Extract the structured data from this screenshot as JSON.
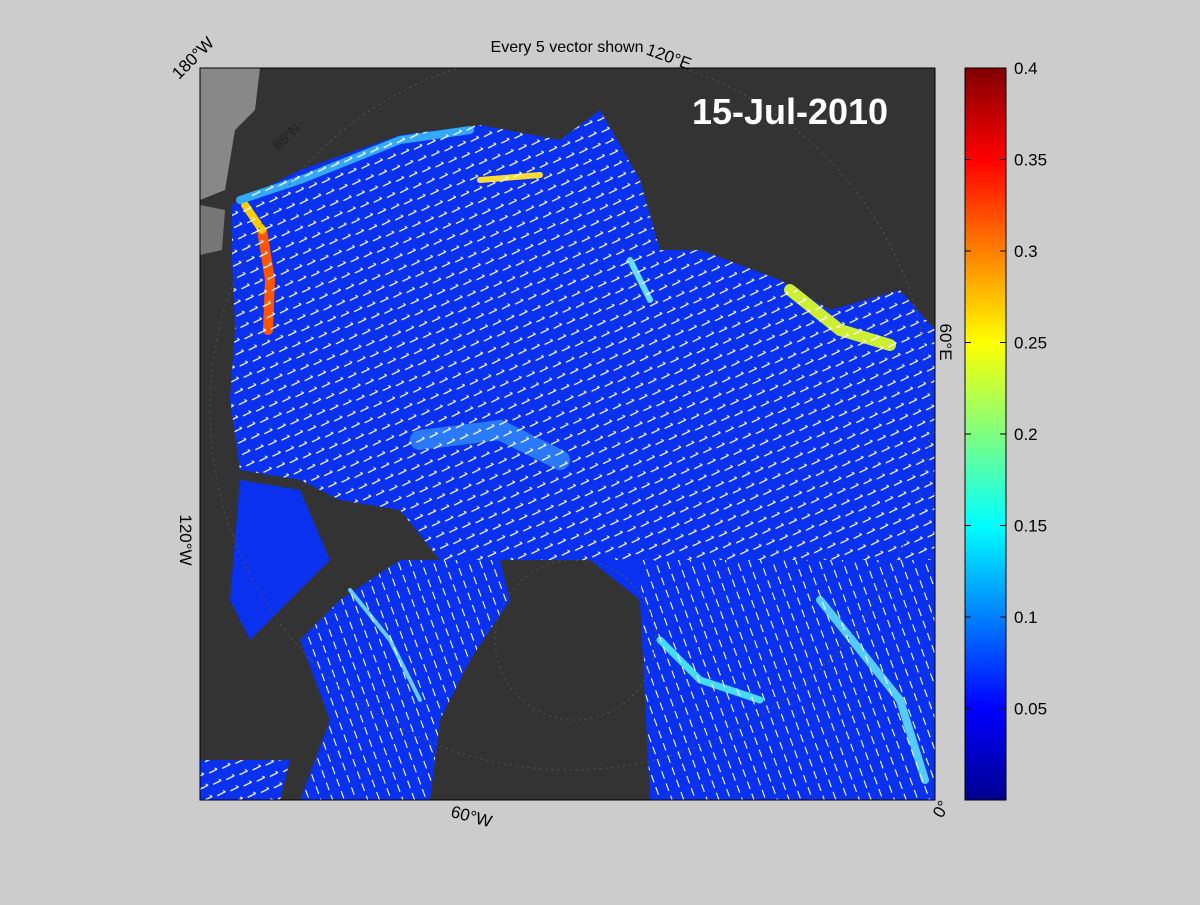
{
  "title": "Every 5 vector shown",
  "date": "15-Jul-2010",
  "map": {
    "lon_labels": [
      "180°W",
      "120°E",
      "60°E",
      "0°",
      "60°W",
      "120°W"
    ],
    "lat_labels": [
      "86°N"
    ]
  },
  "colorbar": {
    "colormap": "jet",
    "lim": [
      0,
      0.4
    ],
    "ticks": [
      0.05,
      0.1,
      0.15,
      0.2,
      0.25,
      0.3,
      0.35,
      0.4
    ]
  }
}
